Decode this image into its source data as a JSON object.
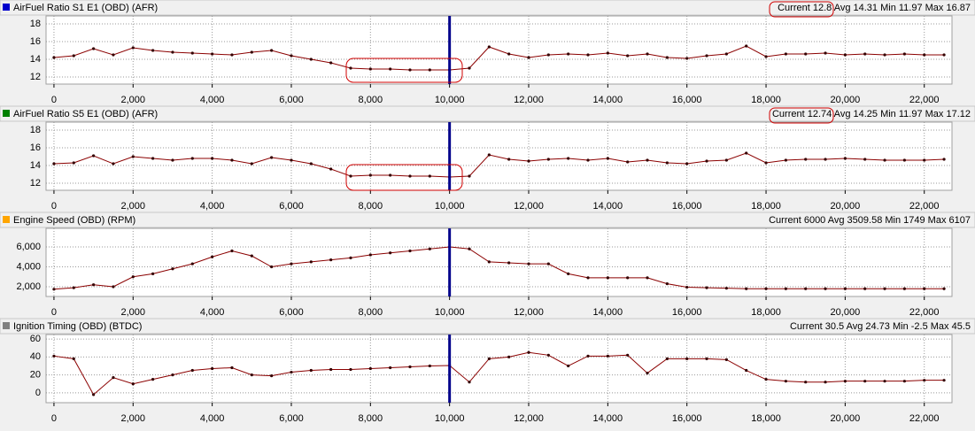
{
  "chart_data": [
    {
      "type": "line",
      "title": "AirFuel Ratio S1 E1 (OBD) (AFR)",
      "stats": "Current 12.8 Avg 14.31 Min 11.97 Max 16.87",
      "legend_color": "#0000cc",
      "line_color": "#8b0000",
      "cursor_x": 10000,
      "x": [
        0,
        500,
        1000,
        1500,
        2000,
        2500,
        3000,
        3500,
        4000,
        4500,
        5000,
        5500,
        6000,
        6500,
        7000,
        7500,
        8000,
        8500,
        9000,
        9500,
        10000,
        10500,
        11000,
        11500,
        12000,
        12500,
        13000,
        13500,
        14000,
        14500,
        15000,
        15500,
        16000,
        16500,
        17000,
        17500,
        18000,
        18500,
        19000,
        19500,
        20000,
        20500,
        21000,
        21500,
        22000,
        22500
      ],
      "series": [
        {
          "name": "AirFuel Ratio S1 E1 (OBD) (AFR)",
          "values": [
            14.2,
            14.4,
            15.2,
            14.5,
            15.3,
            15.0,
            14.8,
            14.7,
            14.6,
            14.5,
            14.8,
            15.0,
            14.4,
            14.0,
            13.6,
            13.0,
            12.9,
            12.9,
            12.8,
            12.8,
            12.8,
            13.0,
            15.4,
            14.6,
            14.2,
            14.5,
            14.6,
            14.5,
            14.7,
            14.4,
            14.6,
            14.2,
            14.1,
            14.4,
            14.6,
            15.5,
            14.3,
            14.6,
            14.6,
            14.7,
            14.5,
            14.6,
            14.5,
            14.6,
            14.5,
            14.5
          ]
        }
      ],
      "xlim": [
        -200,
        22700
      ],
      "ylim": [
        11.2,
        18.9
      ],
      "yticks": [
        12,
        14,
        16,
        18
      ],
      "xticks": [
        0,
        {
          "value": 2000,
          "label": "2,000"
        },
        {
          "value": 4000,
          "label": "4,000"
        },
        {
          "value": 6000,
          "label": "6,000"
        },
        {
          "value": 8000,
          "label": "8,000"
        },
        {
          "value": 10000,
          "label": "10,000"
        },
        {
          "value": 12000,
          "label": "12,000"
        },
        {
          "value": 14000,
          "label": "14,000"
        },
        {
          "value": 16000,
          "label": "16,000"
        },
        {
          "value": 18000,
          "label": "18,000"
        },
        {
          "value": 20000,
          "label": "20,000"
        },
        {
          "value": 22000,
          "label": "22,000"
        }
      ],
      "grid": true
    },
    {
      "type": "line",
      "title": "AirFuel Ratio S5 E1 (OBD) (AFR)",
      "stats": "Current 12.74 Avg 14.25 Min 11.97 Max 17.12",
      "legend_color": "#008000",
      "line_color": "#8b0000",
      "cursor_x": 10000,
      "x": [
        0,
        500,
        1000,
        1500,
        2000,
        2500,
        3000,
        3500,
        4000,
        4500,
        5000,
        5500,
        6000,
        6500,
        7000,
        7500,
        8000,
        8500,
        9000,
        9500,
        10000,
        10500,
        11000,
        11500,
        12000,
        12500,
        13000,
        13500,
        14000,
        14500,
        15000,
        15500,
        16000,
        16500,
        17000,
        17500,
        18000,
        18500,
        19000,
        19500,
        20000,
        20500,
        21000,
        21500,
        22000,
        22500
      ],
      "series": [
        {
          "name": "AirFuel Ratio S5 E1 (OBD) (AFR)",
          "values": [
            14.2,
            14.3,
            15.1,
            14.2,
            15.0,
            14.8,
            14.6,
            14.8,
            14.8,
            14.6,
            14.2,
            14.9,
            14.6,
            14.2,
            13.6,
            12.8,
            12.9,
            12.9,
            12.8,
            12.8,
            12.7,
            12.8,
            15.2,
            14.7,
            14.5,
            14.7,
            14.8,
            14.6,
            14.8,
            14.4,
            14.6,
            14.3,
            14.2,
            14.5,
            14.6,
            15.4,
            14.3,
            14.6,
            14.7,
            14.7,
            14.8,
            14.7,
            14.6,
            14.6,
            14.6,
            14.7
          ]
        }
      ],
      "xlim": [
        -200,
        22700
      ],
      "ylim": [
        11.2,
        18.9
      ],
      "yticks": [
        12,
        14,
        16,
        18
      ],
      "xticks": [
        0,
        {
          "value": 2000,
          "label": "2,000"
        },
        {
          "value": 4000,
          "label": "4,000"
        },
        {
          "value": 6000,
          "label": "6,000"
        },
        {
          "value": 8000,
          "label": "8,000"
        },
        {
          "value": 10000,
          "label": "10,000"
        },
        {
          "value": 12000,
          "label": "12,000"
        },
        {
          "value": 14000,
          "label": "14,000"
        },
        {
          "value": 16000,
          "label": "16,000"
        },
        {
          "value": 18000,
          "label": "18,000"
        },
        {
          "value": 20000,
          "label": "20,000"
        },
        {
          "value": 22000,
          "label": "22,000"
        }
      ],
      "grid": true
    },
    {
      "type": "line",
      "title": "Engine Speed (OBD) (RPM)",
      "stats": "Current 6000 Avg 3509.58 Min 1749 Max 6107",
      "legend_color": "#ffa500",
      "line_color": "#8b0000",
      "cursor_x": 10000,
      "x": [
        0,
        500,
        1000,
        1500,
        2000,
        2500,
        3000,
        3500,
        4000,
        4500,
        5000,
        5500,
        6000,
        6500,
        7000,
        7500,
        8000,
        8500,
        9000,
        9500,
        10000,
        10500,
        11000,
        11500,
        12000,
        12500,
        13000,
        13500,
        14000,
        14500,
        15000,
        15500,
        16000,
        16500,
        17000,
        17500,
        18000,
        18500,
        19000,
        19500,
        20000,
        20500,
        21000,
        21500,
        22000,
        22500
      ],
      "series": [
        {
          "name": "Engine Speed (OBD) (RPM)",
          "values": [
            1750,
            1900,
            2200,
            2000,
            3000,
            3300,
            3800,
            4300,
            5000,
            5600,
            5100,
            4000,
            4300,
            4500,
            4700,
            4900,
            5200,
            5400,
            5600,
            5800,
            6000,
            5800,
            4500,
            4400,
            4300,
            4300,
            3300,
            2900,
            2900,
            2900,
            2900,
            2300,
            1950,
            1900,
            1850,
            1800,
            1800,
            1800,
            1800,
            1800,
            1800,
            1800,
            1800,
            1800,
            1800,
            1800
          ]
        }
      ],
      "xlim": [
        -200,
        22700
      ],
      "ylim": [
        1020,
        7870
      ],
      "yticks": [
        {
          "value": 2000,
          "label": "2,000"
        },
        {
          "value": 4000,
          "label": "4,000"
        },
        {
          "value": 6000,
          "label": "6,000"
        }
      ],
      "xticks": [
        0,
        {
          "value": 2000,
          "label": "2,000"
        },
        {
          "value": 4000,
          "label": "4,000"
        },
        {
          "value": 6000,
          "label": "6,000"
        },
        {
          "value": 8000,
          "label": "8,000"
        },
        {
          "value": 10000,
          "label": "10,000"
        },
        {
          "value": 12000,
          "label": "12,000"
        },
        {
          "value": 14000,
          "label": "14,000"
        },
        {
          "value": 16000,
          "label": "16,000"
        },
        {
          "value": 18000,
          "label": "18,000"
        },
        {
          "value": 20000,
          "label": "20,000"
        },
        {
          "value": 22000,
          "label": "22,000"
        }
      ],
      "grid": true
    },
    {
      "type": "line",
      "title": "Ignition Timing (OBD) (BTDC)",
      "stats": "Current 30.5 Avg 24.73 Min -2.5 Max 45.5",
      "legend_color": "#808080",
      "line_color": "#8b0000",
      "cursor_x": 10000,
      "x": [
        0,
        500,
        1000,
        1500,
        2000,
        2500,
        3000,
        3500,
        4000,
        4500,
        5000,
        5500,
        6000,
        6500,
        7000,
        7500,
        8000,
        8500,
        9000,
        9500,
        10000,
        10500,
        11000,
        11500,
        12000,
        12500,
        13000,
        13500,
        14000,
        14500,
        15000,
        15500,
        16000,
        16500,
        17000,
        17500,
        18000,
        18500,
        19000,
        19500,
        20000,
        20500,
        21000,
        21500,
        22000,
        22500
      ],
      "series": [
        {
          "name": "Ignition Timing (OBD) (BTDC)",
          "values": [
            41,
            38,
            -2,
            17,
            10,
            15,
            20,
            25,
            27,
            28,
            20,
            19,
            23,
            25,
            26,
            26,
            27,
            28,
            29,
            30,
            30.5,
            12,
            38,
            40,
            45,
            42,
            30,
            41,
            41,
            42,
            22,
            38,
            38,
            38,
            37,
            25,
            15,
            13,
            12,
            12,
            13,
            13,
            13,
            13,
            14,
            14
          ]
        }
      ],
      "xlim": [
        -200,
        22700
      ],
      "ylim": [
        -11,
        65
      ],
      "yticks": [
        0,
        20,
        40,
        60
      ],
      "xticks": [
        0,
        {
          "value": 2000,
          "label": "2,000"
        },
        {
          "value": 4000,
          "label": "4,000"
        },
        {
          "value": 6000,
          "label": "6,000"
        },
        {
          "value": 8000,
          "label": "8,000"
        },
        {
          "value": 10000,
          "label": "10,000"
        },
        {
          "value": 12000,
          "label": "12,000"
        },
        {
          "value": 14000,
          "label": "14,000"
        },
        {
          "value": 16000,
          "label": "16,000"
        },
        {
          "value": 18000,
          "label": "18,000"
        },
        {
          "value": 20000,
          "label": "20,000"
        },
        {
          "value": 22000,
          "label": "22,000"
        }
      ],
      "grid": true
    }
  ]
}
